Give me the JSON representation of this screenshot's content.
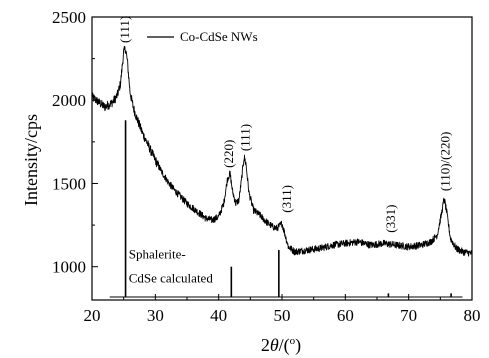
{
  "chart_data": {
    "type": "line",
    "title": "",
    "xlabel_prefix": "2",
    "xlabel_theta": "θ",
    "xlabel_unit_open": "/(",
    "xlabel_degree": "o",
    "xlabel_unit_close": ")",
    "ylabel": "Intensity/cps",
    "xlim": [
      20,
      80
    ],
    "ylim": [
      800,
      2500
    ],
    "x_ticks": [
      20,
      30,
      40,
      50,
      60,
      70,
      80
    ],
    "y_ticks": [
      1000,
      1500,
      2000,
      2500
    ],
    "grid": false,
    "legend": {
      "position": "top-center",
      "entries": [
        "Co-CdSe NWs"
      ]
    },
    "series": [
      {
        "name": "Co-CdSe NWs",
        "color": "#000000",
        "x": [
          20,
          21,
          22,
          22.5,
          23,
          23.5,
          24,
          24.5,
          25,
          25.3,
          25.6,
          26,
          26.5,
          27,
          28,
          29,
          30,
          31,
          32,
          33,
          34,
          35,
          36,
          37,
          38,
          39,
          40,
          40.8,
          41.4,
          41.8,
          42.2,
          42.7,
          43.2,
          43.6,
          44,
          44.3,
          44.8,
          45.5,
          46.5,
          47.5,
          48.5,
          49.2,
          50,
          50.5,
          51,
          52,
          54,
          56,
          58,
          60,
          62,
          64,
          66,
          68,
          70,
          72,
          73.5,
          74.5,
          75.2,
          75.6,
          76,
          76.6,
          77.5,
          78.5,
          80
        ],
        "y": [
          2020,
          1990,
          1960,
          1970,
          1980,
          2000,
          2030,
          2100,
          2290,
          2310,
          2230,
          2050,
          1960,
          1900,
          1800,
          1720,
          1640,
          1570,
          1510,
          1460,
          1420,
          1380,
          1350,
          1320,
          1290,
          1280,
          1300,
          1380,
          1530,
          1560,
          1450,
          1380,
          1400,
          1520,
          1660,
          1620,
          1440,
          1340,
          1310,
          1270,
          1240,
          1230,
          1260,
          1190,
          1120,
          1090,
          1100,
          1110,
          1130,
          1140,
          1150,
          1130,
          1140,
          1130,
          1120,
          1130,
          1150,
          1190,
          1320,
          1410,
          1330,
          1170,
          1110,
          1090,
          1080
        ]
      }
    ],
    "peak_labels": [
      {
        "x": 25.2,
        "y": 2320,
        "text": "(111)"
      },
      {
        "x": 41.6,
        "y": 1570,
        "text": "(220)"
      },
      {
        "x": 44.2,
        "y": 1670,
        "text": "(111)"
      },
      {
        "x": 50.8,
        "y": 1300,
        "text": "(311)"
      },
      {
        "x": 67.2,
        "y": 1180,
        "text": "(331)"
      },
      {
        "x": 75.8,
        "y": 1430,
        "text": "(110)/(220)"
      }
    ],
    "reference_lines": [
      {
        "x": 25.3,
        "y": 1880
      },
      {
        "x": 42.0,
        "y": 1000
      },
      {
        "x": 49.5,
        "y": 1100
      },
      {
        "x": 66.8,
        "y": 840
      },
      {
        "x": 76.7,
        "y": 840
      }
    ],
    "reference_baseline": {
      "x_start": 22.8,
      "x_end": 78.5,
      "y": 818
    },
    "annotation": {
      "x": 25.8,
      "y": 1000,
      "lines": [
        "Sphalerite-",
        "CdSe calculated"
      ]
    }
  }
}
